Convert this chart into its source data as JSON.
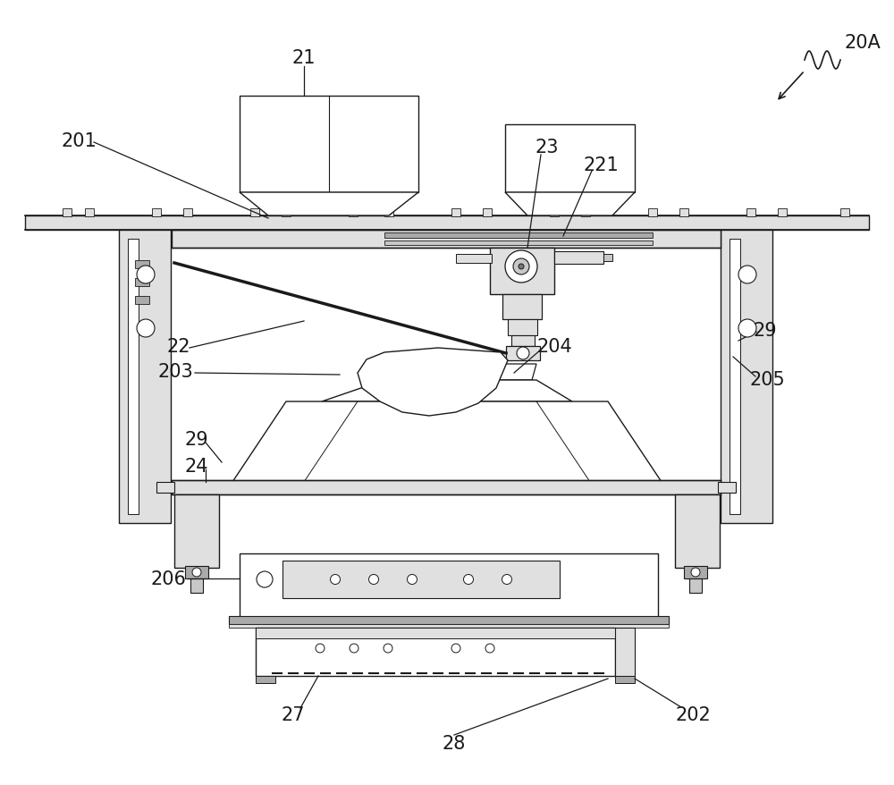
{
  "bg_color": "#ffffff",
  "line_color": "#1a1a1a",
  "gray_fill": "#c8c8c8",
  "light_gray": "#e0e0e0",
  "mid_gray": "#aaaaaa",
  "dark_gray": "#787878",
  "fig_width": 10.0,
  "fig_height": 8.79,
  "dpi": 100
}
